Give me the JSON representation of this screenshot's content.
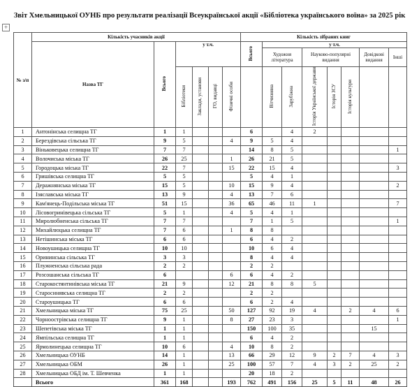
{
  "title": "Звіт Хмельницької ОУНБ про результати реалізації Всеукраїнської акції «Бібліотека українського воїна» за 2025 рік",
  "header": {
    "num": "№ з/п",
    "participants": "Кількість учасників акції",
    "books": "Кількість зібраних книг",
    "name": "Назва ТГ",
    "total": "Всього",
    "incl": "у т.ч.",
    "libraries": "Бібліотеки",
    "institutions": "Заклади, установи",
    "ngo": "ГО, видавці",
    "persons": "Фізичні особи",
    "books_total": "Всього",
    "books_incl": "у т.ч.",
    "fiction": "Художня література",
    "popular": "Науково-популярні видання",
    "reference": "Довідкові видання",
    "other": "Інші",
    "domestic": "Вітчизняна",
    "foreign": "Зарубіжна",
    "hist_state": "Історія Української держави",
    "hist_afu": "Історія ЗСУ",
    "hist_culture": "Історія культури"
  },
  "rows": [
    [
      "1",
      "Антонінська селищна ТГ",
      "1",
      "1",
      "",
      "",
      "",
      "6",
      "",
      "4",
      "2",
      "",
      "",
      "",
      ""
    ],
    [
      "2",
      "Берездівська сільська ТГ",
      "9",
      "5",
      "",
      "",
      "4",
      "9",
      "5",
      "4",
      "",
      "",
      "",
      "",
      ""
    ],
    [
      "3",
      "Віньковецька селищна ТГ",
      "7",
      "7",
      "",
      "",
      "",
      "14",
      "8",
      "5",
      "",
      "",
      "",
      "",
      "1"
    ],
    [
      "4",
      "Волочиська міська ТГ",
      "26",
      "25",
      "",
      "",
      "1",
      "26",
      "21",
      "5",
      "",
      "",
      "",
      "",
      ""
    ],
    [
      "5",
      "Городоцька міська ТГ",
      "22",
      "7",
      "",
      "",
      "15",
      "22",
      "15",
      "4",
      "",
      "",
      "",
      "",
      "3"
    ],
    [
      "6",
      "Гришівська селищна ТГ",
      "5",
      "5",
      "",
      "",
      "",
      "5",
      "4",
      "1",
      "",
      "",
      "",
      "",
      ""
    ],
    [
      "7",
      "Деражнянська міська ТГ",
      "15",
      "5",
      "",
      "",
      "10",
      "15",
      "9",
      "4",
      "",
      "",
      "",
      "",
      "2"
    ],
    [
      "8",
      "Ізяславська міська ТГ",
      "13",
      "9",
      "",
      "",
      "4",
      "13",
      "7",
      "6",
      "",
      "",
      "",
      "",
      ""
    ],
    [
      "9",
      "Кам'янець-Подільська міська ТГ",
      "51",
      "15",
      "",
      "",
      "36",
      "65",
      "46",
      "11",
      "1",
      "",
      "",
      "",
      "7"
    ],
    [
      "10",
      "Лісовогринівецька сільська ТГ",
      "5",
      "1",
      "",
      "",
      "4",
      "5",
      "4",
      "1",
      "",
      "",
      "",
      "",
      ""
    ],
    [
      "11",
      "Миролюбненська сільська ТГ",
      "7",
      "7",
      "",
      "",
      "",
      "7",
      "1",
      "5",
      "",
      "",
      "",
      "",
      "1"
    ],
    [
      "12",
      "Михайлюцька селищна ТГ",
      "7",
      "6",
      "",
      "",
      "1",
      "8",
      "8",
      "",
      "",
      "",
      "",
      "",
      ""
    ],
    [
      "13",
      "Нетішинська міська ТГ",
      "6",
      "6",
      "",
      "",
      "",
      "6",
      "4",
      "2",
      "",
      "",
      "",
      "",
      ""
    ],
    [
      "14",
      "Новоушицька селищна ТГ",
      "10",
      "10",
      "",
      "",
      "",
      "10",
      "6",
      "4",
      "",
      "",
      "",
      "",
      ""
    ],
    [
      "15",
      "Орининська сільська ТГ",
      "3",
      "3",
      "",
      "",
      "",
      "8",
      "4",
      "4",
      "",
      "",
      "",
      "",
      ""
    ],
    [
      "16",
      "Плужненська сільська рада",
      "2",
      "2",
      "",
      "",
      "",
      "2",
      "2",
      "",
      "",
      "",
      "",
      "",
      ""
    ],
    [
      "17",
      "Розсошанська сільська ТГ",
      "6",
      "",
      "",
      "",
      "6",
      "6",
      "4",
      "2",
      "",
      "",
      "",
      "",
      ""
    ],
    [
      "18",
      "Старокостянтинівська міська ТГ",
      "21",
      "9",
      "",
      "",
      "12",
      "21",
      "8",
      "8",
      "5",
      "",
      "",
      "",
      ""
    ],
    [
      "19",
      "Старосинявська селищна ТГ",
      "2",
      "2",
      "",
      "",
      "",
      "2",
      "2",
      "",
      "",
      "",
      "",
      "",
      ""
    ],
    [
      "20",
      "Староушицька ТГ",
      "6",
      "6",
      "",
      "",
      "",
      "6",
      "2",
      "4",
      "",
      "",
      "",
      "",
      ""
    ],
    [
      "21",
      "Хмельницька міська ТГ",
      "75",
      "25",
      "",
      "",
      "50",
      "127",
      "92",
      "19",
      "4",
      "",
      "2",
      "4",
      "6"
    ],
    [
      "22",
      "Чорноострівська селищна ТГ",
      "9",
      "1",
      "",
      "",
      "8",
      "27",
      "23",
      "3",
      "",
      "",
      "",
      "",
      "1"
    ],
    [
      "23",
      "Шепетівська міська ТГ",
      "1",
      "1",
      "",
      "",
      "",
      "150",
      "100",
      "35",
      "",
      "",
      "",
      "15",
      ""
    ],
    [
      "24",
      "Ямпільська селищна ТГ",
      "1",
      "1",
      "",
      "",
      "",
      "6",
      "4",
      "2",
      "",
      "",
      "",
      "",
      ""
    ],
    [
      "25",
      "Ярмолинецька селищна ТГ",
      "10",
      "6",
      "",
      "",
      "4",
      "10",
      "8",
      "2",
      "",
      "",
      "",
      "",
      ""
    ],
    [
      "26",
      "Хмельницька ОУНБ",
      "14",
      "1",
      "",
      "",
      "13",
      "66",
      "29",
      "12",
      "9",
      "2",
      "7",
      "4",
      "3"
    ],
    [
      "27",
      "Хмельницька ОБМ",
      "26",
      "1",
      "",
      "",
      "25",
      "100",
      "57",
      "7",
      "4",
      "3",
      "2",
      "25",
      "2"
    ],
    [
      "28",
      "Хмельницька ОБД ім. Т. Шевченка",
      "1",
      "1",
      "",
      "",
      "",
      "20",
      "18",
      "2",
      "",
      "",
      "",
      "",
      ""
    ]
  ],
  "total_row": [
    "",
    "Всього",
    "361",
    "168",
    "",
    "",
    "193",
    "762",
    "491",
    "156",
    "25",
    "5",
    "11",
    "48",
    "26"
  ]
}
